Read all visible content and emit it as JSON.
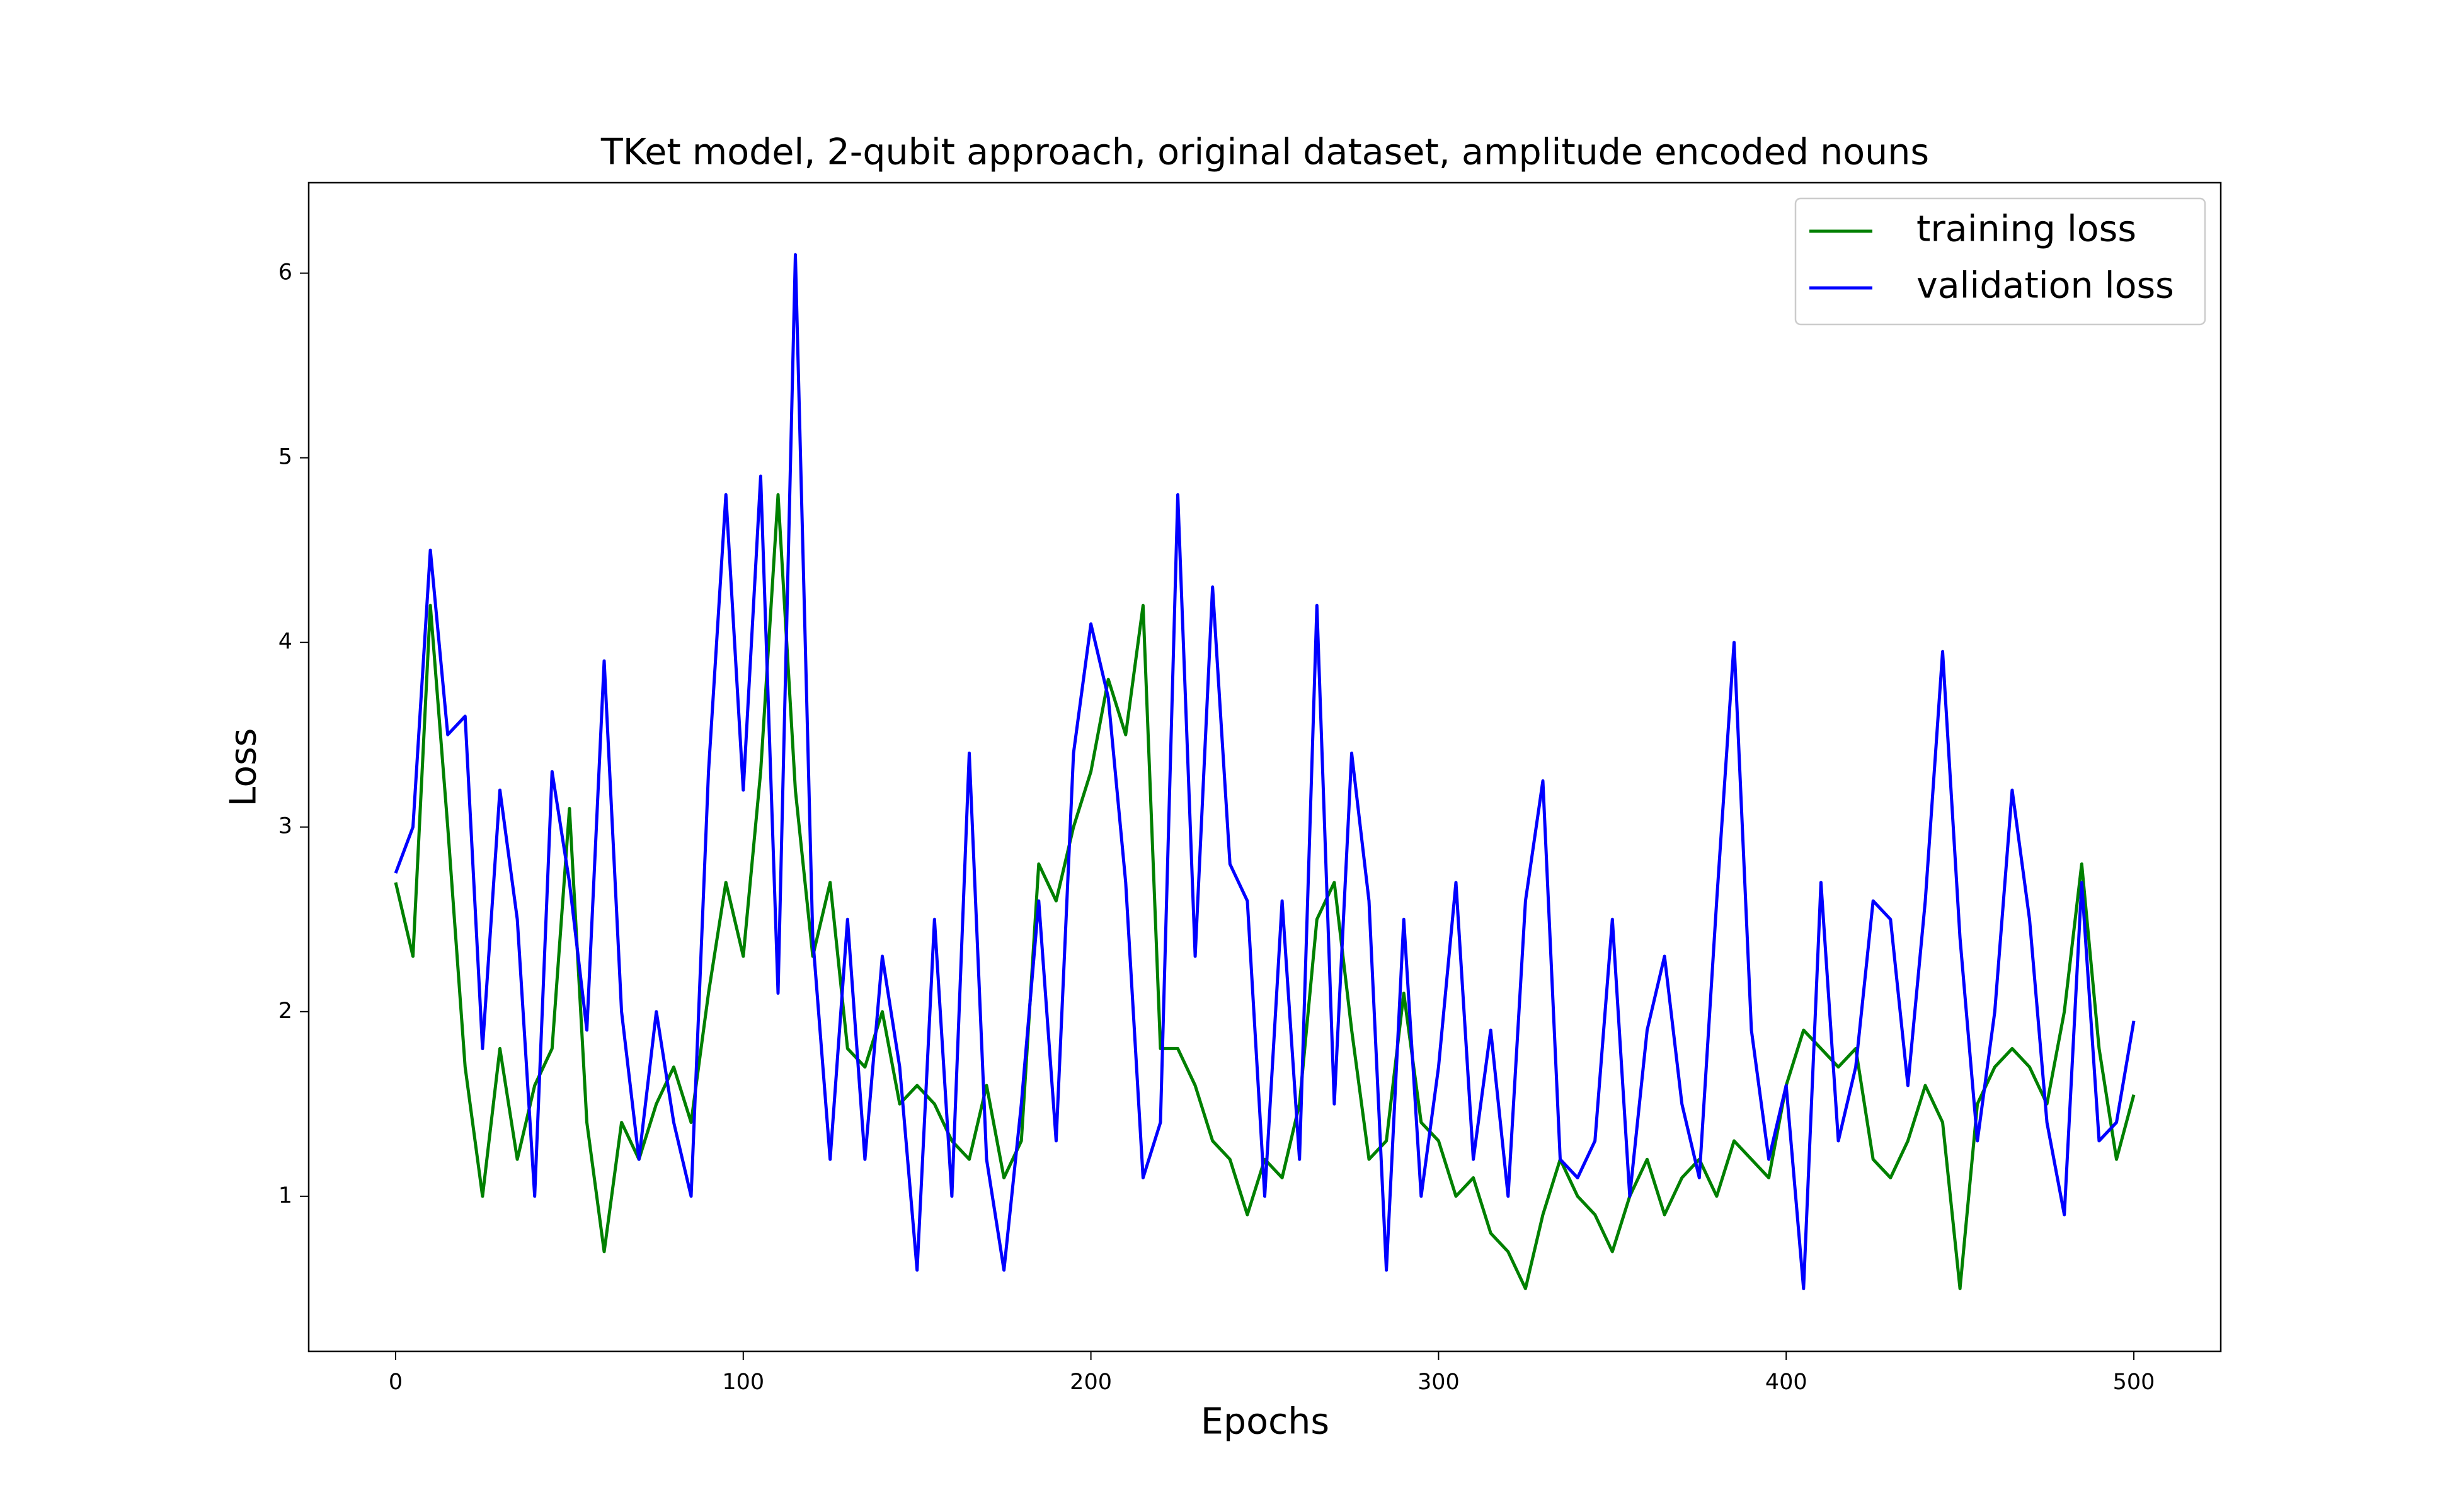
{
  "chart_data": {
    "type": "line",
    "title": "TKet model, 2-qubit approach, original dataset, amplitude encoded nouns",
    "x_label": "Epochs",
    "y_label": "Loss",
    "x": [
      0,
      5,
      10,
      15,
      20,
      25,
      30,
      35,
      40,
      45,
      50,
      55,
      60,
      65,
      70,
      75,
      80,
      85,
      90,
      95,
      100,
      105,
      110,
      115,
      120,
      125,
      130,
      135,
      140,
      145,
      150,
      155,
      160,
      165,
      170,
      175,
      180,
      185,
      190,
      195,
      200,
      205,
      210,
      215,
      220,
      225,
      230,
      235,
      240,
      245,
      250,
      255,
      260,
      265,
      270,
      275,
      280,
      285,
      290,
      295,
      300,
      305,
      310,
      315,
      320,
      325,
      330,
      335,
      340,
      345,
      350,
      355,
      360,
      365,
      370,
      375,
      380,
      385,
      390,
      395,
      400,
      405,
      410,
      415,
      420,
      425,
      430,
      435,
      440,
      445,
      450,
      455,
      460,
      465,
      470,
      475,
      480,
      485,
      490,
      495,
      500
    ],
    "series": [
      {
        "name": "training loss",
        "color": "#008000",
        "values": [
          2.7,
          2.3,
          4.2,
          3.0,
          1.7,
          1.0,
          1.8,
          1.2,
          1.6,
          1.8,
          3.1,
          1.4,
          0.7,
          1.4,
          1.2,
          1.5,
          1.7,
          1.4,
          2.1,
          2.7,
          2.3,
          3.3,
          4.8,
          3.2,
          2.3,
          2.7,
          1.8,
          1.7,
          2.0,
          1.5,
          1.6,
          1.5,
          1.3,
          1.2,
          1.6,
          1.1,
          1.3,
          2.8,
          2.6,
          3.0,
          3.3,
          3.8,
          3.5,
          4.2,
          1.8,
          1.8,
          1.6,
          1.3,
          1.2,
          0.9,
          1.2,
          1.1,
          1.5,
          2.5,
          2.7,
          1.9,
          1.2,
          1.3,
          2.1,
          1.4,
          1.3,
          1.0,
          1.1,
          0.8,
          0.7,
          0.5,
          0.9,
          1.2,
          1.0,
          0.9,
          0.7,
          1.0,
          1.2,
          0.9,
          1.1,
          1.2,
          1.0,
          1.3,
          1.2,
          1.1,
          1.6,
          1.9,
          1.8,
          1.7,
          1.8,
          1.2,
          1.1,
          1.3,
          1.6,
          1.4,
          0.5,
          1.5,
          1.7,
          1.8,
          1.7,
          1.5,
          2.0,
          2.8,
          1.8,
          1.2,
          1.55
        ]
      },
      {
        "name": "validation loss",
        "color": "#0000ff",
        "values": [
          2.75,
          3.0,
          4.5,
          3.5,
          3.6,
          1.8,
          3.2,
          2.5,
          1.0,
          3.3,
          2.7,
          1.9,
          3.9,
          2.0,
          1.2,
          2.0,
          1.4,
          1.0,
          3.3,
          4.8,
          3.2,
          4.9,
          2.1,
          6.1,
          2.4,
          1.2,
          2.5,
          1.2,
          2.3,
          1.7,
          0.6,
          2.5,
          1.0,
          3.4,
          1.2,
          0.6,
          1.5,
          2.6,
          1.3,
          3.4,
          4.1,
          3.7,
          2.7,
          1.1,
          1.4,
          4.8,
          2.3,
          4.3,
          2.8,
          2.6,
          1.0,
          2.6,
          1.2,
          4.2,
          1.5,
          3.4,
          2.6,
          0.6,
          2.5,
          1.0,
          1.7,
          2.7,
          1.2,
          1.9,
          1.0,
          2.6,
          3.25,
          1.2,
          1.1,
          1.3,
          2.5,
          1.0,
          1.9,
          2.3,
          1.5,
          1.1,
          2.6,
          4.0,
          1.9,
          1.2,
          1.6,
          0.5,
          2.7,
          1.3,
          1.7,
          2.6,
          2.5,
          1.6,
          2.6,
          3.95,
          2.4,
          1.3,
          2.0,
          3.2,
          2.5,
          1.4,
          0.9,
          2.7,
          1.3,
          1.4,
          1.95
        ]
      }
    ],
    "xlim": [
      -25,
      525
    ],
    "ylim": [
      0.16,
      6.49
    ],
    "xticks": [
      0,
      100,
      200,
      300,
      400,
      500
    ],
    "yticks": [
      1,
      2,
      3,
      4,
      5,
      6
    ],
    "legend": "upper right"
  }
}
